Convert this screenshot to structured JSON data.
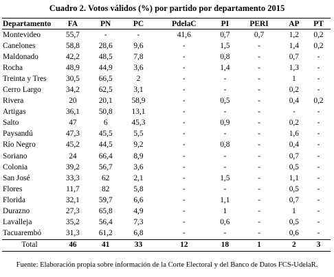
{
  "title": "Cuadro 2. Votos  válidos (%) por partido por departamento 2015",
  "headers": [
    "Departamento",
    "FA",
    "PN",
    "PC",
    "PdelaC",
    "PI",
    "PERI",
    "AP",
    "PT"
  ],
  "rows": [
    [
      "Montevideo",
      "55,7",
      "-",
      "-",
      "41,6",
      "0,7",
      "0,7",
      "1,2",
      "0,2"
    ],
    [
      "Canelones",
      "58,8",
      "28,6",
      "9,6",
      "-",
      "1,5",
      "-",
      "1,4",
      "0,2"
    ],
    [
      "Maldonado",
      "42,2",
      "48,5",
      "7,8",
      "-",
      "0,8",
      "-",
      "0,7",
      "-"
    ],
    [
      "Rocha",
      "48,9",
      "44,9",
      "3,6",
      "-",
      "1,4",
      "-",
      "1,3",
      "-"
    ],
    [
      "Treinta y Tres",
      "30,5",
      "66,5",
      "2",
      "-",
      "-",
      "-",
      "1",
      "-"
    ],
    [
      "Cerro Largo",
      "34,2",
      "62,5",
      "3,1",
      "-",
      "-",
      "-",
      "0,2",
      "-"
    ],
    [
      "Rivera",
      "20",
      "20,1",
      "58,9",
      "-",
      "0,5",
      "-",
      "0,4",
      "0,2"
    ],
    [
      "Artigas",
      "36,1",
      "50,8",
      "13,1",
      "-",
      "-",
      "-",
      "-",
      "-"
    ],
    [
      "Salto",
      "47",
      "6",
      "45,3",
      "-",
      "0,9",
      "-",
      "0,2",
      "-"
    ],
    [
      "Paysandú",
      "47,3",
      "45,5",
      "5,5",
      "-",
      "-",
      "-",
      "1,6",
      "-"
    ],
    [
      "Río Negro",
      "45,2",
      "44,5",
      "9,2",
      "-",
      "0,8",
      "-",
      "0,4",
      "-"
    ],
    [
      "Soriano",
      "24",
      "66,4",
      "8,9",
      "-",
      "-",
      "-",
      "0,7",
      "-"
    ],
    [
      "Colonia",
      "39,2",
      "56,7",
      "3,6",
      "-",
      "-",
      "-",
      "0,5",
      "-"
    ],
    [
      "San José",
      "33,3",
      "62",
      "2,1",
      "-",
      "1,5",
      "-",
      "1,1",
      "-"
    ],
    [
      "Flores",
      "11,7",
      "82",
      "5,8",
      "-",
      "-",
      "-",
      "0,5",
      "-"
    ],
    [
      "Florida",
      "32,1",
      "59,7",
      "6,6",
      "-",
      "1,1",
      "-",
      "0,7",
      "-"
    ],
    [
      "Durazno",
      "27,3",
      "65,8",
      "4,9",
      "-",
      "1",
      "-",
      "1",
      "-"
    ],
    [
      "Lavalleja",
      "35,2",
      "56,4",
      "7,3",
      "-",
      "0,6",
      "-",
      "0,5",
      "-"
    ],
    [
      "Tacuarembó",
      "31,3",
      "61,2",
      "6,8",
      "-",
      "-",
      "-",
      "0,6",
      "-"
    ]
  ],
  "total": [
    "Total",
    "46",
    "41",
    "33",
    "12",
    "18",
    "1",
    "2",
    "3"
  ],
  "footer": "Fuente: Elaboración propia sobre información de la Corte Electoral y del Banco de Datos FCS-UdelaR."
}
